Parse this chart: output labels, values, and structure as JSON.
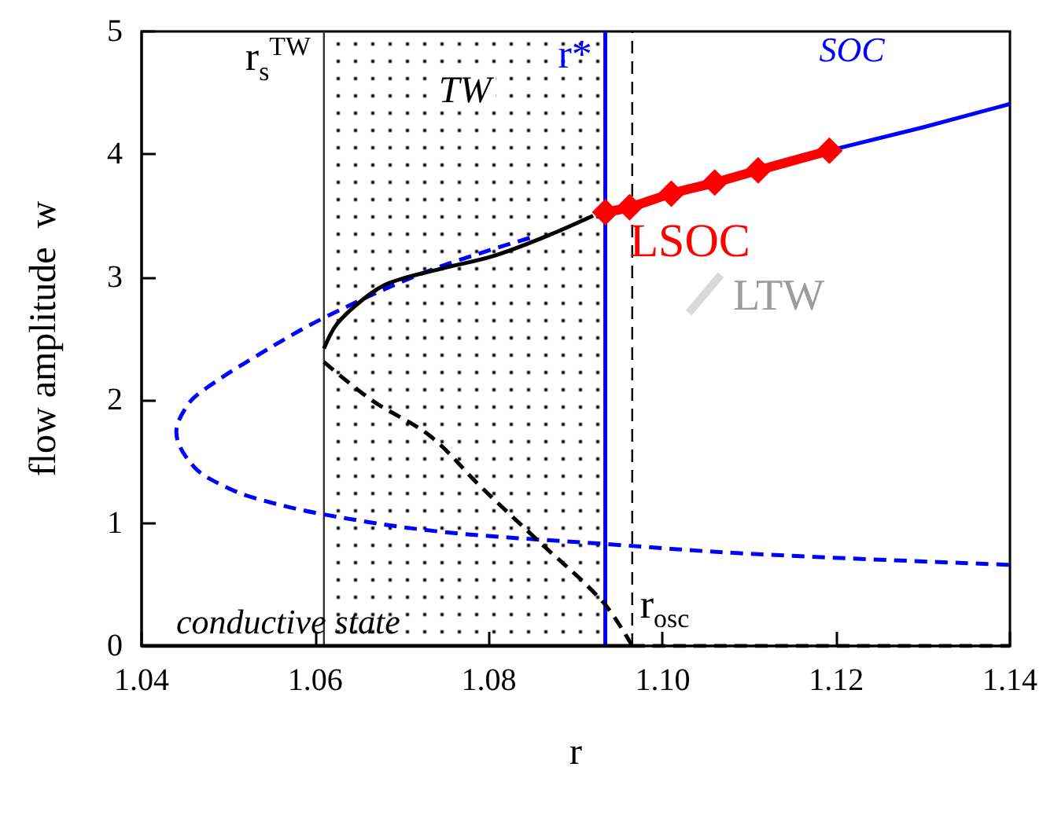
{
  "chart_data": {
    "type": "line",
    "xlabel": "r",
    "ylabel": "flow amplitude  w",
    "xlim": [
      1.04,
      1.14
    ],
    "ylim": [
      0,
      5
    ],
    "xticks": [
      1.04,
      1.06,
      1.08,
      {
        "value": 1.1,
        "label": "1.10"
      },
      1.12,
      1.14
    ],
    "yticks": [
      0,
      1,
      2,
      3,
      4,
      5
    ],
    "grid": false,
    "series": [
      {
        "color": "#000000",
        "line_style": "solid",
        "marker": "none",
        "x": [
          1.04,
          1.0965
        ],
        "values": [
          0,
          0
        ]
      },
      {
        "color": "#000000",
        "line_style": "dashed",
        "marker": "none",
        "x": [
          1.0965,
          1.14
        ],
        "values": [
          0,
          0
        ]
      },
      {
        "color": "#0000ff",
        "line_style": "dashed",
        "marker": "none",
        "x": [
          1.0847,
          1.073,
          1.061,
          1.053,
          1.0475,
          1.0454,
          1.044,
          1.046,
          1.0495,
          1.0532,
          1.061,
          1.0744,
          1.0934,
          1.11,
          1.14
        ],
        "values": [
          3.32,
          3.05,
          2.67,
          2.35,
          2.1,
          1.97,
          1.74,
          1.46,
          1.3,
          1.2,
          1.07,
          0.93,
          0.83,
          0.75,
          0.66
        ]
      },
      {
        "color": "#000000",
        "line_style": "dashed",
        "marker": "none",
        "x": [
          1.061,
          1.0665,
          1.0732,
          1.079,
          1.0853,
          1.0931,
          1.0965
        ],
        "values": [
          2.31,
          2.0,
          1.71,
          1.3,
          0.88,
          0.36,
          0
        ]
      },
      {
        "color": "#000000",
        "line_style": "solid",
        "marker": "none",
        "x": [
          1.061,
          1.0625,
          1.0655,
          1.0684,
          1.0745,
          1.0804,
          1.0865,
          1.092
        ],
        "values": [
          2.42,
          2.62,
          2.82,
          2.95,
          3.07,
          3.17,
          3.33,
          3.5
        ]
      },
      {
        "name": "SOC",
        "color": "#0000ff",
        "line_style": "solid",
        "marker": "none",
        "x": [
          1.1197,
          1.13,
          1.14
        ],
        "values": [
          4.04,
          4.22,
          4.41
        ]
      },
      {
        "name": "LSOC",
        "color": "#ff0000",
        "line_style": "solid",
        "marker": "diamond",
        "x": [
          1.0934,
          1.0962,
          1.101,
          1.106,
          1.111,
          1.1192
        ],
        "values": [
          3.53,
          3.57,
          3.68,
          3.77,
          3.87,
          4.03
        ]
      },
      {
        "name": "LTW",
        "color": "#d9d9d9",
        "line_style": "solid",
        "marker": "none",
        "x": [
          1.103,
          1.1067
        ],
        "values": [
          2.71,
          3.02
        ]
      }
    ],
    "ref_lines": [
      {
        "axis": "x",
        "value": 1.061,
        "label": "r$_{s}$$^{TW}$",
        "color": "#333333",
        "line_style": "solid"
      },
      {
        "axis": "x",
        "value": 1.0934,
        "label": "r*",
        "color": "#0000ff",
        "line_style": "solid"
      },
      {
        "axis": "x",
        "value": 1.0965,
        "label": "r$_{osc}$",
        "color": "#000000",
        "line_style": "dashed"
      }
    ],
    "annotations": [
      "conductive state"
    ],
    "bands": [
      {
        "axis": "x",
        "from": 1.061,
        "to": 1.0934,
        "label": "TW",
        "color": "#000000"
      }
    ]
  }
}
